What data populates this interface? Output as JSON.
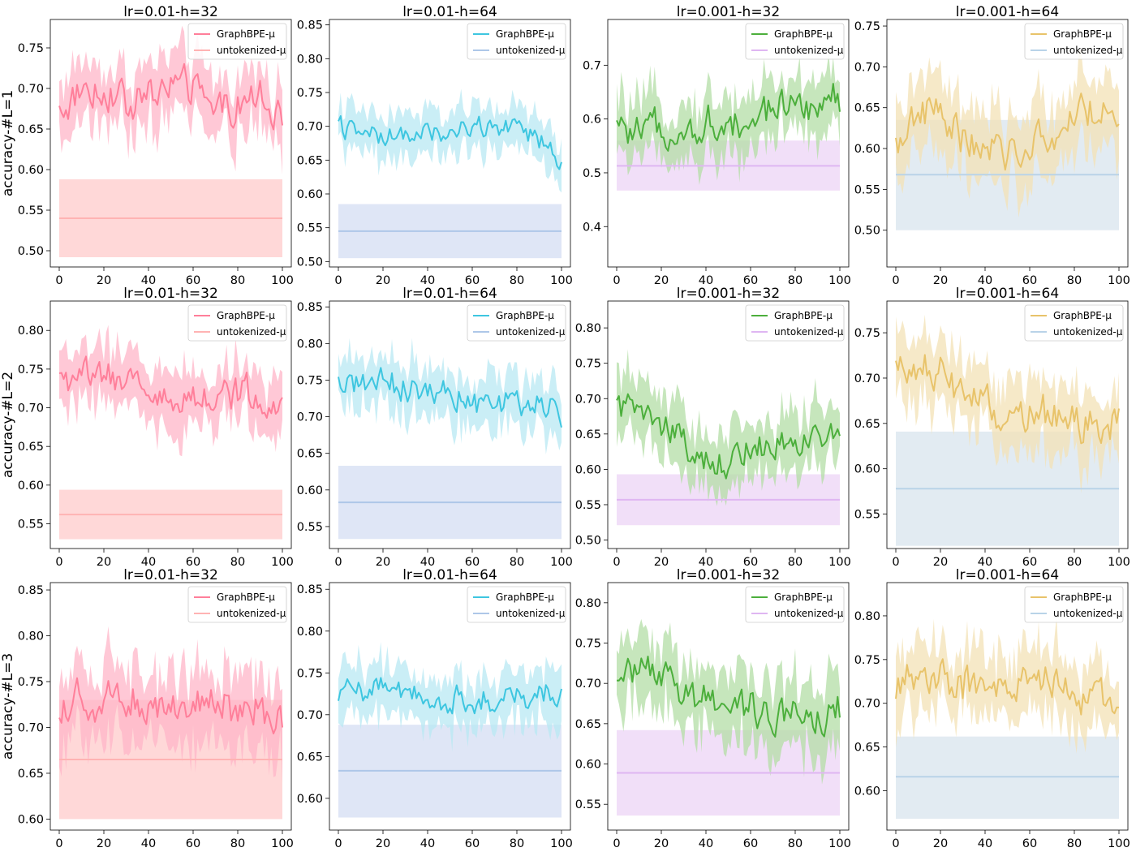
{
  "figure": {
    "row_labels": [
      "accuracy-#L=1",
      "accuracy-#L=2",
      "accuracy-#L=3"
    ],
    "legend_labels": [
      "GraphBPE-μ",
      "untokenized-μ"
    ]
  },
  "chart_data": [
    {
      "type": "line",
      "row": 0,
      "col": 0,
      "title": "lr=0.01-h=32",
      "ylabel": "accuracy-#L=1",
      "xlim": [
        -4,
        104
      ],
      "ylim": [
        0.48,
        0.785
      ],
      "xticks": [
        0,
        20,
        40,
        60,
        80,
        100
      ],
      "yticks": [
        0.5,
        0.55,
        0.6,
        0.65,
        0.7,
        0.75
      ],
      "line_color": "#ff7f9a",
      "band_color": "#ffb6c8",
      "base_color": "#ffb3b3",
      "base_band_color": "#ffd4d4",
      "series": [
        {
          "name": "GraphBPE-μ",
          "mean": 0.683,
          "spread": 0.035,
          "noise": 0.02,
          "pattern": [
            0.67,
            0.7,
            0.7,
            0.68,
            0.69,
            0.71,
            0.7,
            0.67,
            0.68,
            0.69,
            0.66
          ]
        },
        {
          "name": "untokenized-μ",
          "value": 0.54,
          "band": [
            0.492,
            0.588
          ]
        }
      ],
      "legend": "top-right"
    },
    {
      "type": "line",
      "row": 0,
      "col": 1,
      "title": "lr=0.01-h=64",
      "ylabel": "",
      "xlim": [
        -4,
        104
      ],
      "ylim": [
        0.492,
        0.858
      ],
      "xticks": [
        0,
        20,
        40,
        60,
        80,
        100
      ],
      "yticks": [
        0.5,
        0.55,
        0.6,
        0.65,
        0.7,
        0.75,
        0.8,
        0.85
      ],
      "line_color": "#3ec6e0",
      "band_color": "#b8e8f3",
      "base_color": "#aec7e8",
      "base_band_color": "#dbe3f5",
      "series": [
        {
          "name": "GraphBPE-μ",
          "mean": 0.69,
          "spread": 0.03,
          "noise": 0.015,
          "pattern": [
            0.7,
            0.69,
            0.68,
            0.69,
            0.69,
            0.69,
            0.7,
            0.7,
            0.69,
            0.68,
            0.65
          ]
        },
        {
          "name": "untokenized-μ",
          "value": 0.545,
          "band": [
            0.505,
            0.585
          ]
        }
      ],
      "legend": "top-right"
    },
    {
      "type": "line",
      "row": 0,
      "col": 2,
      "title": "lr=0.001-h=32",
      "ylabel": "",
      "xlim": [
        -4,
        104
      ],
      "ylim": [
        0.325,
        0.785
      ],
      "xticks": [
        0,
        20,
        40,
        60,
        80,
        100
      ],
      "yticks": [
        0.4,
        0.5,
        0.6,
        0.7
      ],
      "line_color": "#4caf3c",
      "band_color": "#b3deA5",
      "base_color": "#dfb6f2",
      "base_band_color": "#efdcf7",
      "series": [
        {
          "name": "GraphBPE-μ",
          "mean": 0.6,
          "spread": 0.05,
          "noise": 0.03,
          "pattern": [
            0.58,
            0.57,
            0.59,
            0.57,
            0.6,
            0.58,
            0.61,
            0.62,
            0.62,
            0.63,
            0.64
          ]
        },
        {
          "name": "untokenized-μ",
          "value": 0.513,
          "band": [
            0.467,
            0.56
          ]
        }
      ],
      "legend": "top-right"
    },
    {
      "type": "line",
      "row": 0,
      "col": 3,
      "title": "lr=0.001-h=64",
      "ylabel": "",
      "xlim": [
        -4,
        104
      ],
      "ylim": [
        0.455,
        0.758
      ],
      "xticks": [
        0,
        20,
        40,
        60,
        80,
        100
      ],
      "yticks": [
        0.5,
        0.55,
        0.6,
        0.65,
        0.7,
        0.75
      ],
      "line_color": "#e8c36a",
      "band_color": "#f3e2b6",
      "base_color": "#b9d3e8",
      "base_band_color": "#dfe9f1",
      "series": [
        {
          "name": "GraphBPE-μ",
          "mean": 0.62,
          "spread": 0.04,
          "noise": 0.02,
          "pattern": [
            0.6,
            0.65,
            0.64,
            0.61,
            0.6,
            0.59,
            0.61,
            0.62,
            0.64,
            0.65,
            0.64
          ]
        },
        {
          "name": "untokenized-μ",
          "value": 0.568,
          "band": [
            0.5,
            0.635
          ]
        }
      ],
      "legend": "top-right"
    },
    {
      "type": "line",
      "row": 1,
      "col": 0,
      "title": "lr=0.01-h=32",
      "ylabel": "accuracy-#L=2",
      "xlim": [
        -4,
        104
      ],
      "ylim": [
        0.518,
        0.838
      ],
      "xticks": [
        0,
        20,
        40,
        60,
        80,
        100
      ],
      "yticks": [
        0.55,
        0.6,
        0.65,
        0.7,
        0.75,
        0.8
      ],
      "line_color": "#ff7f9a",
      "band_color": "#ffb6c8",
      "base_color": "#ffb3b3",
      "base_band_color": "#ffd4d4",
      "series": [
        {
          "name": "GraphBPE-μ",
          "mean": 0.725,
          "spread": 0.035,
          "noise": 0.02,
          "pattern": [
            0.73,
            0.74,
            0.74,
            0.73,
            0.73,
            0.71,
            0.72,
            0.71,
            0.72,
            0.72,
            0.7
          ]
        },
        {
          "name": "untokenized-μ",
          "value": 0.562,
          "band": [
            0.53,
            0.594
          ]
        }
      ],
      "legend": "top-right"
    },
    {
      "type": "line",
      "row": 1,
      "col": 1,
      "title": "lr=0.01-h=64",
      "ylabel": "",
      "xlim": [
        -4,
        104
      ],
      "ylim": [
        0.52,
        0.858
      ],
      "xticks": [
        0,
        20,
        40,
        60,
        80,
        100
      ],
      "yticks": [
        0.55,
        0.6,
        0.65,
        0.7,
        0.75,
        0.8,
        0.85
      ],
      "line_color": "#3ec6e0",
      "band_color": "#b8e8f3",
      "base_color": "#aec7e8",
      "base_band_color": "#dbe3f5",
      "series": [
        {
          "name": "GraphBPE-μ",
          "mean": 0.73,
          "spread": 0.035,
          "noise": 0.018,
          "pattern": [
            0.74,
            0.75,
            0.75,
            0.74,
            0.74,
            0.73,
            0.72,
            0.72,
            0.72,
            0.72,
            0.7
          ]
        },
        {
          "name": "untokenized-μ",
          "value": 0.583,
          "band": [
            0.533,
            0.633
          ]
        }
      ],
      "legend": "top-right"
    },
    {
      "type": "line",
      "row": 1,
      "col": 2,
      "title": "lr=0.001-h=32",
      "ylabel": "",
      "xlim": [
        -4,
        104
      ],
      "ylim": [
        0.488,
        0.838
      ],
      "xticks": [
        0,
        20,
        40,
        60,
        80,
        100
      ],
      "yticks": [
        0.5,
        0.55,
        0.6,
        0.65,
        0.7,
        0.75,
        0.8
      ],
      "line_color": "#4caf3c",
      "band_color": "#b3dea5",
      "base_color": "#dfb6f2",
      "base_band_color": "#efdcf7",
      "series": [
        {
          "name": "GraphBPE-μ",
          "mean": 0.64,
          "spread": 0.04,
          "noise": 0.02,
          "pattern": [
            0.68,
            0.69,
            0.66,
            0.64,
            0.61,
            0.61,
            0.63,
            0.63,
            0.64,
            0.65,
            0.64
          ]
        },
        {
          "name": "untokenized-μ",
          "value": 0.557,
          "band": [
            0.521,
            0.593
          ]
        }
      ],
      "legend": "top-right"
    },
    {
      "type": "line",
      "row": 1,
      "col": 3,
      "title": "lr=0.001-h=64",
      "ylabel": "",
      "xlim": [
        -4,
        104
      ],
      "ylim": [
        0.512,
        0.785
      ],
      "xticks": [
        0,
        20,
        40,
        60,
        80,
        100
      ],
      "yticks": [
        0.55,
        0.6,
        0.65,
        0.7,
        0.75
      ],
      "line_color": "#e8c36a",
      "band_color": "#f3e2b6",
      "base_color": "#b9d3e8",
      "base_band_color": "#dfe9f1",
      "series": [
        {
          "name": "GraphBPE-μ",
          "mean": 0.67,
          "spread": 0.035,
          "noise": 0.02,
          "pattern": [
            0.7,
            0.72,
            0.71,
            0.68,
            0.67,
            0.66,
            0.66,
            0.66,
            0.65,
            0.65,
            0.65
          ]
        },
        {
          "name": "untokenized-μ",
          "value": 0.578,
          "band": [
            0.515,
            0.641
          ]
        }
      ],
      "legend": "top-right"
    },
    {
      "type": "line",
      "row": 2,
      "col": 0,
      "title": "lr=0.01-h=32",
      "ylabel": "accuracy-#L=3",
      "xlim": [
        -4,
        104
      ],
      "ylim": [
        0.588,
        0.858
      ],
      "xticks": [
        0,
        20,
        40,
        60,
        80,
        100
      ],
      "yticks": [
        0.6,
        0.65,
        0.7,
        0.75,
        0.8,
        0.85
      ],
      "line_color": "#ff7f9a",
      "band_color": "#ffb6c8",
      "base_color": "#ffb3b3",
      "base_band_color": "#ffd4d4",
      "series": [
        {
          "name": "GraphBPE-μ",
          "mean": 0.725,
          "spread": 0.04,
          "noise": 0.02,
          "pattern": [
            0.73,
            0.73,
            0.73,
            0.73,
            0.73,
            0.72,
            0.73,
            0.73,
            0.72,
            0.72,
            0.7
          ]
        },
        {
          "name": "untokenized-μ",
          "value": 0.665,
          "band": [
            0.6,
            0.73
          ]
        }
      ],
      "legend": "top-right"
    },
    {
      "type": "line",
      "row": 2,
      "col": 1,
      "title": "lr=0.01-h=64",
      "ylabel": "",
      "xlim": [
        -4,
        104
      ],
      "ylim": [
        0.562,
        0.858
      ],
      "xticks": [
        0,
        20,
        40,
        60,
        80,
        100
      ],
      "yticks": [
        0.6,
        0.65,
        0.7,
        0.75,
        0.8,
        0.85
      ],
      "line_color": "#3ec6e0",
      "band_color": "#b8e8f3",
      "base_color": "#aec7e8",
      "base_band_color": "#dbe3f5",
      "series": [
        {
          "name": "GraphBPE-μ",
          "mean": 0.725,
          "spread": 0.03,
          "noise": 0.015,
          "pattern": [
            0.73,
            0.73,
            0.73,
            0.72,
            0.72,
            0.72,
            0.72,
            0.72,
            0.72,
            0.73,
            0.73
          ]
        },
        {
          "name": "untokenized-μ",
          "value": 0.633,
          "band": [
            0.577,
            0.688
          ]
        }
      ],
      "legend": "top-right"
    },
    {
      "type": "line",
      "row": 2,
      "col": 2,
      "title": "lr=0.001-h=32",
      "ylabel": "",
      "xlim": [
        -4,
        104
      ],
      "ylim": [
        0.518,
        0.825
      ],
      "xticks": [
        0,
        20,
        40,
        60,
        80,
        100
      ],
      "yticks": [
        0.55,
        0.6,
        0.65,
        0.7,
        0.75,
        0.8
      ],
      "line_color": "#4caf3c",
      "band_color": "#b3dea5",
      "base_color": "#dfb6f2",
      "base_band_color": "#efdcf7",
      "series": [
        {
          "name": "GraphBPE-μ",
          "mean": 0.68,
          "spread": 0.04,
          "noise": 0.02,
          "pattern": [
            0.72,
            0.72,
            0.71,
            0.69,
            0.68,
            0.68,
            0.67,
            0.66,
            0.66,
            0.66,
            0.67
          ]
        },
        {
          "name": "untokenized-μ",
          "value": 0.589,
          "band": [
            0.536,
            0.642
          ]
        }
      ],
      "legend": "top-right"
    },
    {
      "type": "line",
      "row": 2,
      "col": 3,
      "title": "lr=0.001-h=64",
      "ylabel": "",
      "xlim": [
        -4,
        104
      ],
      "ylim": [
        0.555,
        0.838
      ],
      "xticks": [
        0,
        20,
        40,
        60,
        80,
        100
      ],
      "yticks": [
        0.6,
        0.65,
        0.7,
        0.75,
        0.8
      ],
      "line_color": "#e8c36a",
      "band_color": "#f3e2b6",
      "base_color": "#b9d3e8",
      "base_band_color": "#dfe9f1",
      "series": [
        {
          "name": "GraphBPE-μ",
          "mean": 0.72,
          "spread": 0.035,
          "noise": 0.02,
          "pattern": [
            0.72,
            0.73,
            0.73,
            0.72,
            0.73,
            0.72,
            0.72,
            0.73,
            0.71,
            0.7,
            0.7
          ]
        },
        {
          "name": "untokenized-μ",
          "value": 0.616,
          "band": [
            0.568,
            0.662
          ]
        }
      ],
      "legend": "top-right"
    }
  ]
}
